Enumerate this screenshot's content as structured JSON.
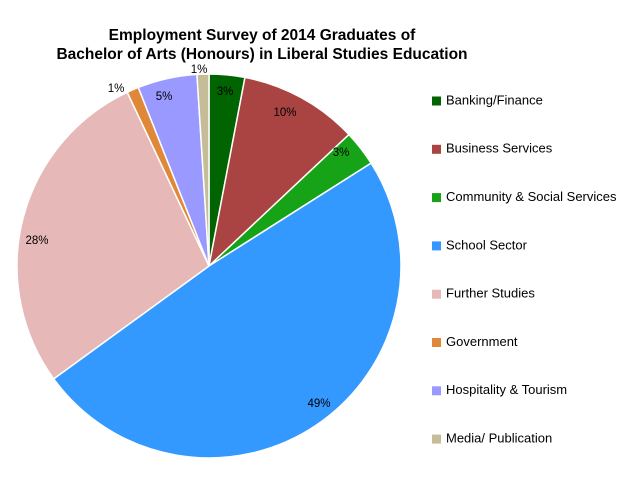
{
  "chart_data": {
    "type": "pie",
    "title": [
      "Employment Survey of 2014 Graduates of",
      "Bachelor of Arts (Honours) in Liberal Studies Education"
    ],
    "legend_position": "right",
    "start_angle_deg": 0,
    "direction": "clockwise",
    "slices": [
      {
        "name": "Banking/Finance",
        "value": 3,
        "label": "3%",
        "color": "#006400"
      },
      {
        "name": "Business Services",
        "value": 10,
        "label": "10%",
        "color": "#A94442"
      },
      {
        "name": "Community & Social Services",
        "value": 3,
        "label": "3%",
        "color": "#17A317"
      },
      {
        "name": "School Sector",
        "value": 49,
        "label": "49%",
        "color": "#3399FF"
      },
      {
        "name": "Further Studies",
        "value": 28,
        "label": "28%",
        "color": "#E6B8B7"
      },
      {
        "name": "Government",
        "value": 1,
        "label": "1%",
        "color": "#E0883A"
      },
      {
        "name": "Hospitality & Tourism",
        "value": 5,
        "label": "5%",
        "color": "#9999FF"
      },
      {
        "name": "Media/ Publication",
        "value": 1,
        "label": "1%",
        "color": "#C4BD97"
      }
    ]
  }
}
